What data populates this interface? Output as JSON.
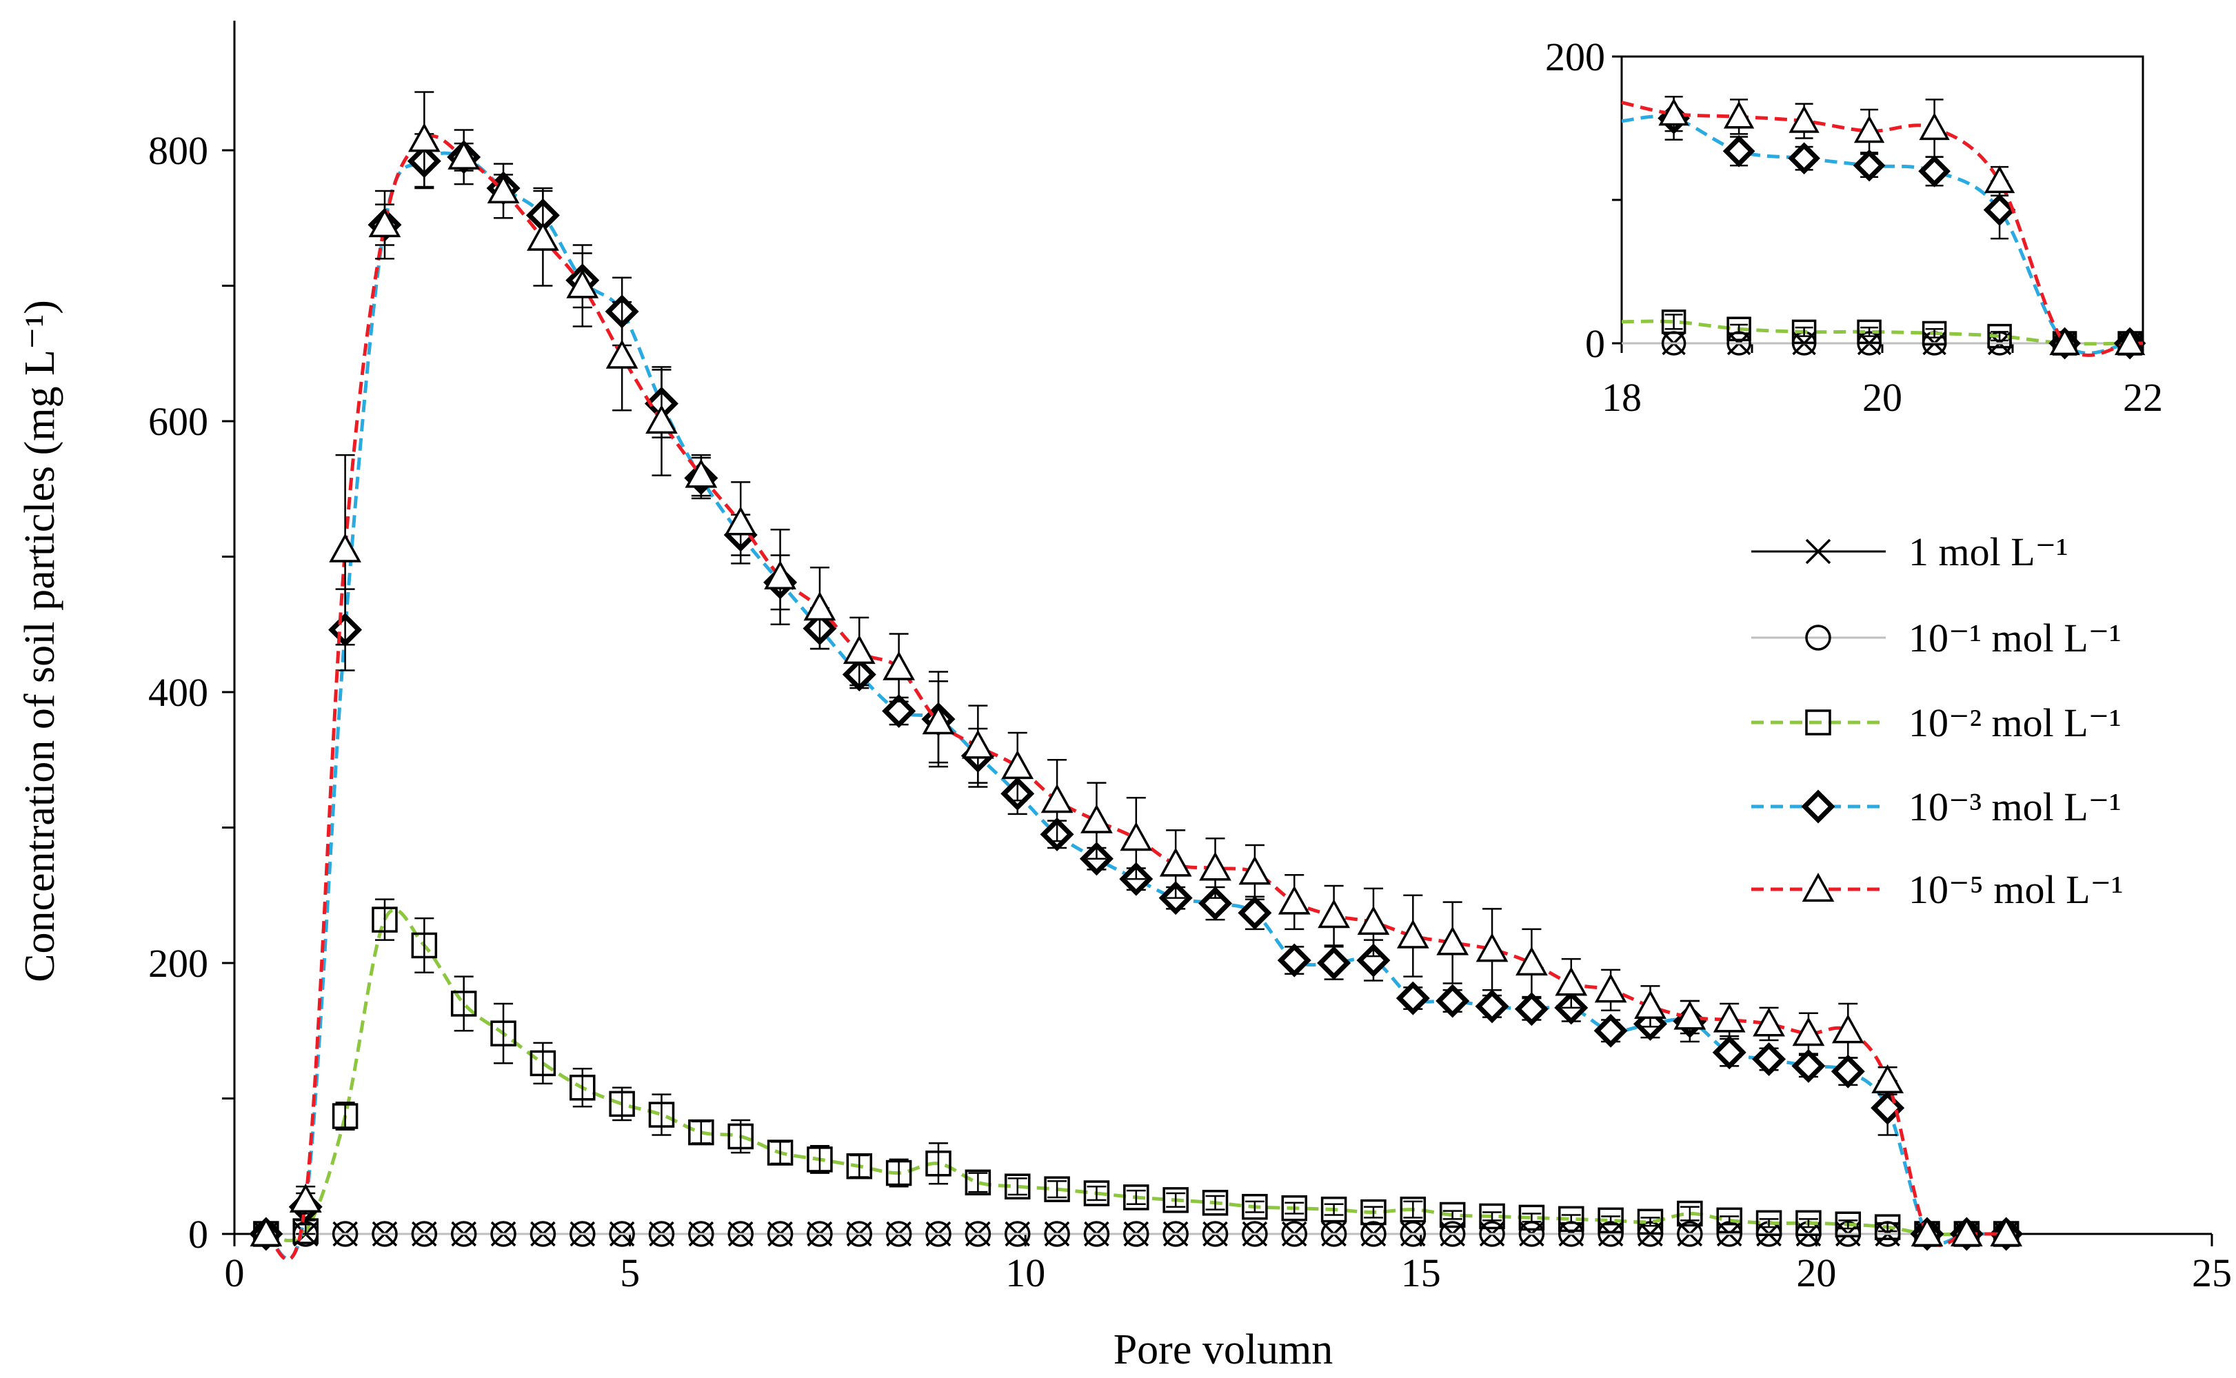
{
  "chart_data": [
    {
      "type": "line",
      "title": "",
      "xlabel": "Pore volumn",
      "ylabel": "Concentration of soil particles (mg L⁻¹)",
      "xlim": [
        0,
        25
      ],
      "ylim": [
        0,
        800
      ],
      "xticks": [
        "0",
        "5",
        "10",
        "15",
        "20",
        "25"
      ],
      "yticks": [
        "0",
        "200",
        "400",
        "600",
        "800"
      ],
      "grid": false,
      "legend_placement": "right",
      "x": [
        0.4,
        0.9,
        1.4,
        1.9,
        2.4,
        2.9,
        3.4,
        3.9,
        4.4,
        4.9,
        5.4,
        5.9,
        6.4,
        6.9,
        7.4,
        7.9,
        8.4,
        8.9,
        9.4,
        9.9,
        10.4,
        10.9,
        11.4,
        11.9,
        12.4,
        12.9,
        13.4,
        13.9,
        14.4,
        14.9,
        15.4,
        15.9,
        16.4,
        16.9,
        17.4,
        17.9,
        18.4,
        18.9,
        19.4,
        19.9,
        20.4,
        20.9,
        21.4,
        21.9,
        22.4
      ],
      "series": [
        {
          "name": "1 mol L⁻¹",
          "marker": "x",
          "line": "solid",
          "color": "#000000",
          "values": [
            0,
            0,
            0,
            0,
            0,
            0,
            0,
            0,
            0,
            0,
            0,
            0,
            0,
            0,
            0,
            0,
            0,
            0,
            0,
            0,
            0,
            0,
            0,
            0,
            0,
            0,
            0,
            0,
            0,
            0,
            0,
            0,
            0,
            0,
            0,
            0,
            0,
            0,
            0,
            0,
            0,
            0,
            0,
            0,
            0
          ]
        },
        {
          "name": "10⁻¹ mol L⁻¹",
          "marker": "circle",
          "line": "solid",
          "color": "#bfbfbf",
          "values": [
            0,
            0,
            0,
            0,
            0,
            0,
            0,
            0,
            0,
            0,
            0,
            0,
            0,
            0,
            0,
            0,
            0,
            0,
            0,
            0,
            0,
            0,
            0,
            0,
            0,
            0,
            0,
            0,
            0,
            0,
            0,
            0,
            0,
            0,
            0,
            0,
            0,
            0,
            0,
            0,
            0,
            0,
            0,
            0,
            0
          ]
        },
        {
          "name": "10⁻² mol L⁻¹",
          "marker": "square",
          "line": "dashed",
          "color": "#8dc63f",
          "values": [
            0,
            2,
            87,
            232,
            213,
            170,
            148,
            126,
            108,
            96,
            88,
            75,
            72,
            60,
            55,
            50,
            45,
            52,
            38,
            35,
            33,
            30,
            27,
            25,
            23,
            20,
            19,
            18,
            16,
            18,
            14,
            13,
            12,
            11,
            10,
            9,
            15,
            10,
            8,
            8,
            7,
            5,
            0,
            0,
            0
          ],
          "errors": [
            0,
            5,
            10,
            15,
            20,
            20,
            22,
            15,
            14,
            12,
            15,
            8,
            12,
            8,
            10,
            8,
            10,
            15,
            7,
            6,
            6,
            5,
            5,
            5,
            5,
            4,
            4,
            4,
            4,
            6,
            3,
            3,
            3,
            3,
            3,
            3,
            5,
            3,
            3,
            3,
            3,
            3,
            0,
            0,
            0
          ]
        },
        {
          "name": "10⁻³ mol L⁻¹",
          "marker": "diamond",
          "line": "dashed",
          "color": "#29abe2",
          "values": [
            0,
            20,
            446,
            745,
            792,
            795,
            772,
            752,
            704,
            681,
            613,
            558,
            516,
            481,
            447,
            413,
            386,
            380,
            353,
            325,
            295,
            277,
            262,
            248,
            244,
            237,
            202,
            200,
            202,
            174,
            172,
            168,
            166,
            167,
            150,
            155,
            157,
            134,
            129,
            124,
            120,
            93,
            0,
            0,
            0
          ],
          "errors": [
            0,
            10,
            30,
            15,
            20,
            10,
            10,
            20,
            20,
            25,
            25,
            15,
            15,
            20,
            15,
            10,
            10,
            35,
            20,
            15,
            10,
            8,
            8,
            8,
            12,
            12,
            10,
            12,
            15,
            8,
            8,
            8,
            8,
            10,
            8,
            10,
            15,
            10,
            8,
            8,
            10,
            20,
            0,
            0,
            0
          ]
        },
        {
          "name": "10⁻⁵ mol L⁻¹",
          "marker": "triangle",
          "line": "dashed",
          "color": "#ed1c24",
          "values": [
            0,
            25,
            505,
            745,
            808,
            795,
            770,
            735,
            700,
            648,
            600,
            560,
            525,
            485,
            462,
            430,
            418,
            378,
            360,
            345,
            320,
            305,
            292,
            273,
            270,
            267,
            245,
            235,
            230,
            220,
            215,
            210,
            200,
            185,
            180,
            168,
            160,
            158,
            155,
            148,
            150,
            113,
            0,
            0,
            0
          ],
          "errors": [
            0,
            10,
            70,
            25,
            35,
            20,
            20,
            35,
            30,
            40,
            40,
            15,
            30,
            35,
            30,
            25,
            25,
            30,
            30,
            25,
            30,
            28,
            30,
            25,
            22,
            20,
            20,
            22,
            25,
            30,
            30,
            30,
            25,
            18,
            15,
            15,
            12,
            12,
            12,
            15,
            20,
            10,
            0,
            0,
            0
          ]
        }
      ]
    },
    {
      "type": "line",
      "role": "inset",
      "title": "",
      "xlim": [
        18,
        22
      ],
      "ylim": [
        0,
        200
      ],
      "xticks": [
        "18",
        "20",
        "22"
      ],
      "yticks": [
        "0",
        "200"
      ],
      "x": [
        18.4,
        18.9,
        19.4,
        19.9,
        20.4,
        20.9,
        21.4,
        21.9
      ],
      "series": [
        {
          "name": "1 mol L⁻¹",
          "values": [
            0,
            0,
            0,
            0,
            0,
            0,
            0,
            0
          ]
        },
        {
          "name": "10⁻¹ mol L⁻¹",
          "values": [
            0,
            0,
            0,
            0,
            0,
            0,
            0,
            0
          ]
        },
        {
          "name": "10⁻² mol L⁻¹",
          "values": [
            15,
            10,
            8,
            8,
            7,
            5,
            0,
            0
          ],
          "errors": [
            5,
            3,
            3,
            3,
            3,
            3,
            0,
            0
          ]
        },
        {
          "name": "10⁻³ mol L⁻¹",
          "values": [
            157,
            134,
            129,
            124,
            120,
            93,
            0,
            0
          ],
          "errors": [
            15,
            10,
            8,
            8,
            10,
            20,
            0,
            0
          ]
        },
        {
          "name": "10⁻⁵ mol L⁻¹",
          "values": [
            160,
            158,
            155,
            148,
            150,
            113,
            0,
            0
          ],
          "errors": [
            12,
            12,
            12,
            15,
            20,
            10,
            0,
            0
          ]
        }
      ]
    }
  ]
}
